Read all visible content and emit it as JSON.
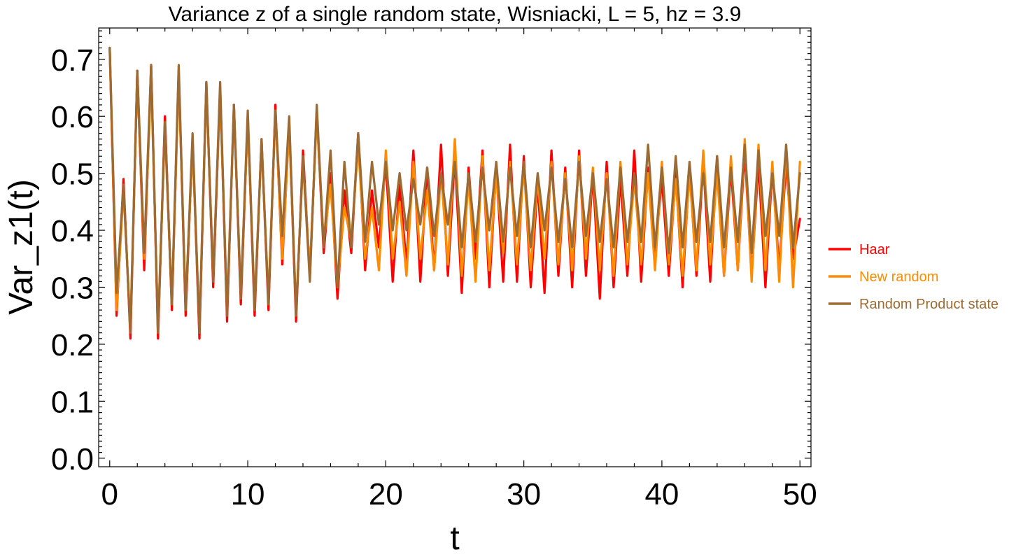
{
  "chart_data": {
    "type": "line",
    "title": "Variance z of a single random state, Wisniacki, L = 5, hz = 3.9",
    "xlabel": "t",
    "ylabel": "Var_z1(t)",
    "xlim": [
      -0.8,
      50.8
    ],
    "ylim": [
      -0.015,
      0.755
    ],
    "x_ticks": [
      0,
      10,
      20,
      30,
      40,
      50
    ],
    "x_tick_labels": [
      "0",
      "10",
      "20",
      "30",
      "40",
      "50"
    ],
    "y_ticks": [
      0.0,
      0.1,
      0.2,
      0.3,
      0.4,
      0.5,
      0.6,
      0.7
    ],
    "y_tick_labels": [
      "0.0",
      "0.1",
      "0.2",
      "0.3",
      "0.4",
      "0.5",
      "0.6",
      "0.7"
    ],
    "grid": false,
    "legend_position": "right",
    "x": [
      0,
      0.5,
      1.0,
      1.5,
      2.0,
      2.5,
      3.0,
      3.5,
      4.0,
      4.5,
      5.0,
      5.5,
      6.0,
      6.5,
      7.0,
      7.5,
      8.0,
      8.5,
      9.0,
      9.5,
      10.0,
      10.5,
      11.0,
      11.5,
      12.0,
      12.5,
      13.0,
      13.5,
      14.0,
      14.5,
      15.0,
      15.5,
      16.0,
      16.5,
      17.0,
      17.5,
      18.0,
      18.5,
      19.0,
      19.5,
      20.0,
      20.5,
      21.0,
      21.5,
      22.0,
      22.5,
      23.0,
      23.5,
      24.0,
      24.5,
      25.0,
      25.5,
      26.0,
      26.5,
      27.0,
      27.5,
      28.0,
      28.5,
      29.0,
      29.5,
      30.0,
      30.5,
      31.0,
      31.5,
      32.0,
      32.5,
      33.0,
      33.5,
      34.0,
      34.5,
      35.0,
      35.5,
      36.0,
      36.5,
      37.0,
      37.5,
      38.0,
      38.5,
      39.0,
      39.5,
      40.0,
      40.5,
      41.0,
      41.5,
      42.0,
      42.5,
      43.0,
      43.5,
      44.0,
      44.5,
      45.0,
      45.5,
      46.0,
      46.5,
      47.0,
      47.5,
      48.0,
      48.5,
      49.0,
      49.5,
      50.0
    ],
    "series": [
      {
        "name": "Haar",
        "color": "#FF0000",
        "values": [
          0.72,
          0.25,
          0.49,
          0.21,
          0.68,
          0.33,
          0.69,
          0.21,
          0.6,
          0.26,
          0.68,
          0.25,
          0.56,
          0.21,
          0.66,
          0.3,
          0.65,
          0.24,
          0.62,
          0.27,
          0.6,
          0.25,
          0.56,
          0.26,
          0.62,
          0.34,
          0.59,
          0.24,
          0.54,
          0.32,
          0.61,
          0.36,
          0.5,
          0.28,
          0.47,
          0.36,
          0.57,
          0.33,
          0.47,
          0.37,
          0.52,
          0.31,
          0.48,
          0.34,
          0.54,
          0.31,
          0.51,
          0.33,
          0.55,
          0.32,
          0.53,
          0.29,
          0.51,
          0.35,
          0.54,
          0.3,
          0.51,
          0.31,
          0.55,
          0.31,
          0.53,
          0.3,
          0.48,
          0.29,
          0.54,
          0.32,
          0.51,
          0.3,
          0.54,
          0.32,
          0.5,
          0.28,
          0.52,
          0.3,
          0.49,
          0.32,
          0.54,
          0.31,
          0.51,
          0.36,
          0.49,
          0.32,
          0.5,
          0.3,
          0.51,
          0.32,
          0.52,
          0.31,
          0.53,
          0.32,
          0.51,
          0.33,
          0.54,
          0.32,
          0.52,
          0.3,
          0.51,
          0.33,
          0.52,
          0.35,
          0.42
        ]
      },
      {
        "name": "New random",
        "color": "#FF8C00",
        "values": [
          0.72,
          0.26,
          0.47,
          0.23,
          0.67,
          0.35,
          0.67,
          0.23,
          0.58,
          0.27,
          0.67,
          0.27,
          0.55,
          0.23,
          0.65,
          0.32,
          0.64,
          0.26,
          0.61,
          0.29,
          0.59,
          0.27,
          0.55,
          0.28,
          0.61,
          0.35,
          0.58,
          0.26,
          0.52,
          0.33,
          0.6,
          0.38,
          0.48,
          0.3,
          0.44,
          0.38,
          0.55,
          0.35,
          0.44,
          0.33,
          0.54,
          0.35,
          0.45,
          0.32,
          0.52,
          0.35,
          0.47,
          0.33,
          0.5,
          0.34,
          0.56,
          0.32,
          0.49,
          0.31,
          0.53,
          0.33,
          0.5,
          0.36,
          0.52,
          0.34,
          0.51,
          0.33,
          0.49,
          0.35,
          0.52,
          0.34,
          0.5,
          0.33,
          0.53,
          0.35,
          0.51,
          0.33,
          0.5,
          0.32,
          0.52,
          0.34,
          0.49,
          0.34,
          0.5,
          0.33,
          0.52,
          0.34,
          0.49,
          0.32,
          0.5,
          0.33,
          0.54,
          0.34,
          0.5,
          0.32,
          0.53,
          0.33,
          0.56,
          0.31,
          0.55,
          0.33,
          0.52,
          0.31,
          0.55,
          0.3,
          0.52
        ]
      },
      {
        "name": "Random Product state",
        "color": "#9C6A33",
        "values": [
          0.72,
          0.29,
          0.48,
          0.22,
          0.68,
          0.36,
          0.69,
          0.22,
          0.59,
          0.27,
          0.69,
          0.26,
          0.57,
          0.22,
          0.66,
          0.31,
          0.66,
          0.25,
          0.62,
          0.28,
          0.61,
          0.26,
          0.56,
          0.27,
          0.61,
          0.39,
          0.6,
          0.25,
          0.53,
          0.31,
          0.62,
          0.37,
          0.54,
          0.3,
          0.52,
          0.37,
          0.57,
          0.38,
          0.52,
          0.41,
          0.52,
          0.4,
          0.5,
          0.4,
          0.49,
          0.41,
          0.51,
          0.39,
          0.5,
          0.41,
          0.52,
          0.37,
          0.5,
          0.38,
          0.51,
          0.4,
          0.52,
          0.38,
          0.51,
          0.39,
          0.52,
          0.37,
          0.5,
          0.4,
          0.51,
          0.38,
          0.49,
          0.37,
          0.52,
          0.39,
          0.5,
          0.38,
          0.49,
          0.37,
          0.51,
          0.38,
          0.5,
          0.38,
          0.55,
          0.37,
          0.51,
          0.36,
          0.53,
          0.37,
          0.52,
          0.38,
          0.5,
          0.38,
          0.53,
          0.37,
          0.51,
          0.38,
          0.55,
          0.36,
          0.54,
          0.39,
          0.5,
          0.39,
          0.55,
          0.37,
          0.5
        ]
      }
    ]
  }
}
